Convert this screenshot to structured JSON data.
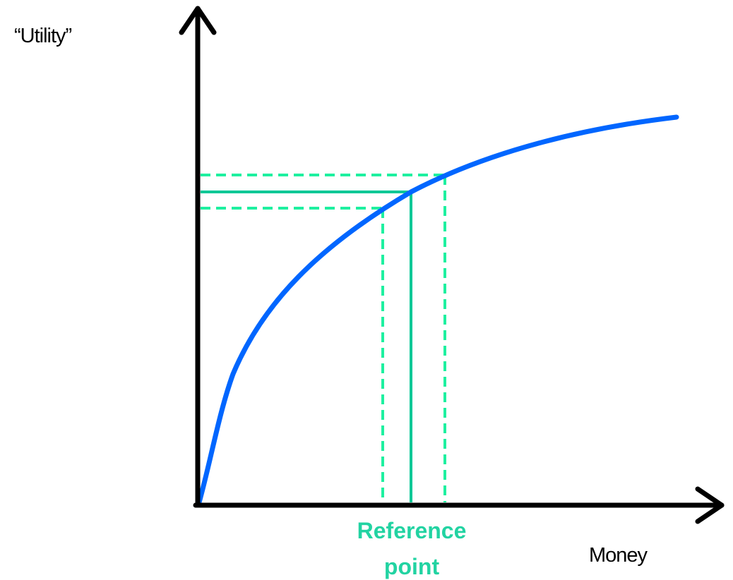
{
  "y_axis_label": "“Utility”",
  "x_axis_label": "Money",
  "annotation": {
    "lines": [
      "Reference",
      "point"
    ]
  }
}
